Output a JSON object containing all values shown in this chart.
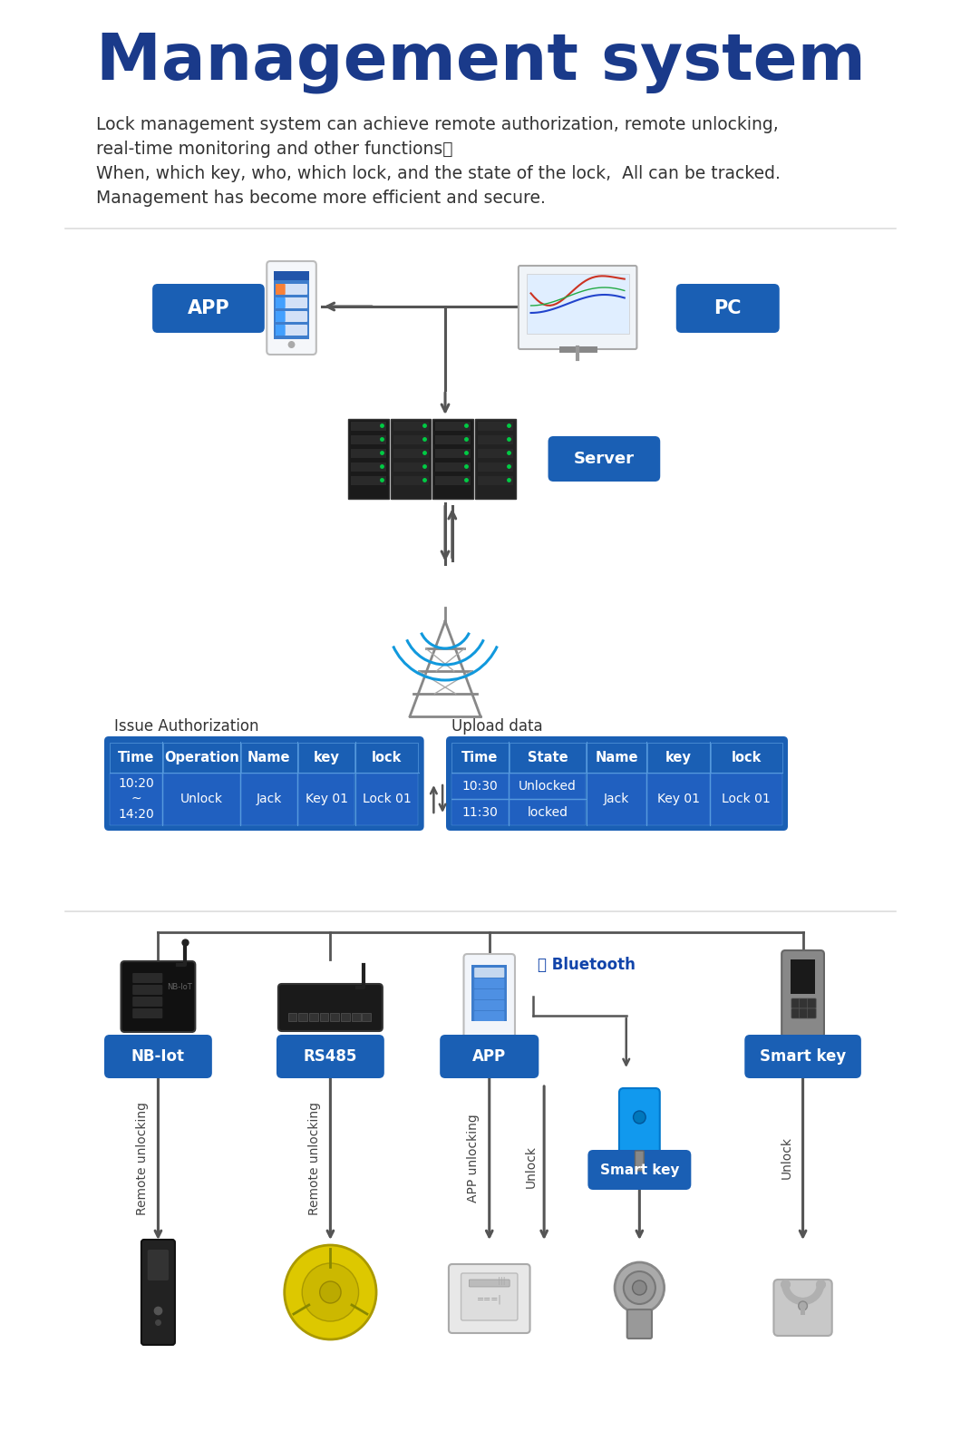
{
  "title": "Management system",
  "title_color": "#1a3a8a",
  "subtitle_lines": [
    "Lock management system can achieve remote authorization, remote unlocking,",
    "real-time monitoring and other functions。",
    "When, which key, who, which lock, and the state of the lock,  All can be tracked.",
    "Management has become more efficient and secure."
  ],
  "subtitle_color": "#333333",
  "bg_color": "#ffffff",
  "blue_btn_color": "#1a5fb4",
  "white_text": "#ffffff",
  "arrow_color": "#555555",
  "table_header_color": "#1a5fb4",
  "table_cell_color": "#2060c0",
  "table_border_color": "#5599dd",
  "issue_auth_label": "Issue Authorization",
  "upload_data_label": "Upload data",
  "issue_auth_headers": [
    "Time",
    "Operation",
    "Name",
    "key",
    "lock"
  ],
  "issue_auth_row": [
    "10:20\n~\n14:20",
    "Unlock",
    "Jack",
    "Key 01",
    "Lock 01"
  ],
  "upload_data_headers": [
    "Time",
    "State",
    "Name",
    "key",
    "lock"
  ],
  "upload_data_row1_time": "10:30",
  "upload_data_row1_state": "Unlocked",
  "upload_data_row2_time": "11:30",
  "upload_data_row2_state": "locked",
  "upload_data_shared": [
    "Jack",
    "Key 01",
    "Lock 01"
  ],
  "app_label": "APP",
  "pc_label": "PC",
  "server_label": "Server",
  "nb_label": "NB-Iot",
  "rs_label": "RS485",
  "app2_label": "APP",
  "smartkey_label": "Smart key",
  "smartkey2_label": "Smart key",
  "bluetooth_label": "Bluetooth",
  "action_remote1": "Remote unlocking",
  "action_remote2": "Remote unlocking",
  "action_app": "APP unlocking",
  "action_unlock1": "Unlock",
  "action_unlock2": "Unlock"
}
